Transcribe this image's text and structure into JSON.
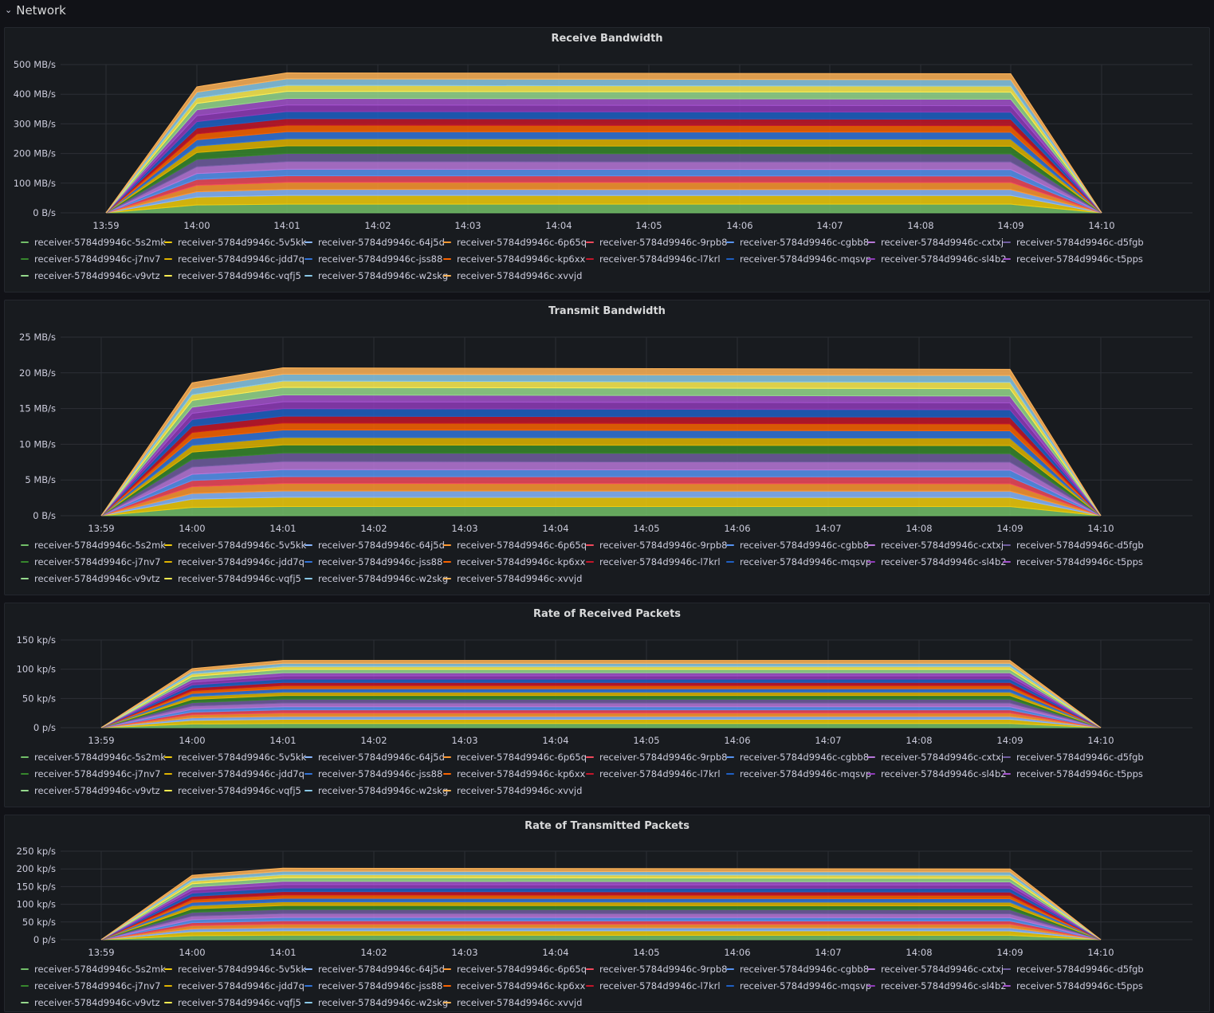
{
  "row": {
    "title": "Network"
  },
  "times": [
    "13:59",
    "14:00",
    "14:01",
    "14:02",
    "14:03",
    "14:04",
    "14:05",
    "14:06",
    "14:07",
    "14:08",
    "14:09",
    "14:10"
  ],
  "series_names": [
    "receiver-5784d9946c-5s2mk",
    "receiver-5784d9946c-5v5kk",
    "receiver-5784d9946c-64j5d",
    "receiver-5784d9946c-6p65q",
    "receiver-5784d9946c-9rpb8",
    "receiver-5784d9946c-cgbb8",
    "receiver-5784d9946c-cxtxj",
    "receiver-5784d9946c-d5fgb",
    "receiver-5784d9946c-j7nv7",
    "receiver-5784d9946c-jdd7q",
    "receiver-5784d9946c-jss88",
    "receiver-5784d9946c-kp6xx",
    "receiver-5784d9946c-l7krl",
    "receiver-5784d9946c-mqsvp",
    "receiver-5784d9946c-sl4b2",
    "receiver-5784d9946c-t5pps",
    "receiver-5784d9946c-v9vtz",
    "receiver-5784d9946c-vqfj5",
    "receiver-5784d9946c-w2skg",
    "receiver-5784d9946c-xvvjd"
  ],
  "series_colors": [
    "#73bf69",
    "#f2cc0c",
    "#8ab8ff",
    "#ff9830",
    "#f2495c",
    "#5794f2",
    "#b877d9",
    "#705da0",
    "#37872d",
    "#e0b400",
    "#3274d9",
    "#fa6400",
    "#c4162a",
    "#1f60c4",
    "#8f3bb8",
    "#a352cc",
    "#96d98d",
    "#ffee52",
    "#8ac9e8",
    "#ffb357"
  ],
  "chart_data": [
    {
      "type": "area",
      "title": "Receive Bandwidth",
      "stacked": true,
      "x": [
        "13:59",
        "14:00",
        "14:01",
        "14:09",
        "14:10"
      ],
      "total": [
        0,
        425,
        472,
        469,
        0
      ],
      "unit": "MB/s",
      "ylim": [
        0,
        500
      ],
      "yticks": [
        "0 B/s",
        "100 MB/s",
        "200 MB/s",
        "300 MB/s",
        "400 MB/s",
        "500 MB/s"
      ],
      "legend": "bottom",
      "grid": true
    },
    {
      "type": "area",
      "title": "Transmit Bandwidth",
      "stacked": true,
      "x": [
        "13:59",
        "14:00",
        "14:01",
        "14:09",
        "14:10"
      ],
      "total": [
        0,
        18.6,
        20.7,
        20.5,
        0
      ],
      "unit": "MB/s",
      "ylim": [
        0,
        25
      ],
      "yticks": [
        "0 B/s",
        "5 MB/s",
        "10 MB/s",
        "15 MB/s",
        "20 MB/s",
        "25 MB/s"
      ],
      "legend": "bottom",
      "grid": true
    },
    {
      "type": "area",
      "title": "Rate of Received Packets",
      "stacked": true,
      "x": [
        "13:59",
        "14:00",
        "14:01",
        "14:09",
        "14:10"
      ],
      "total": [
        0,
        101,
        115,
        115,
        0
      ],
      "unit": "kp/s",
      "ylim": [
        0,
        150
      ],
      "yticks": [
        "0 p/s",
        "50 kp/s",
        "100 kp/s",
        "150 kp/s"
      ],
      "legend": "bottom",
      "grid": true
    },
    {
      "type": "area",
      "title": "Rate of Transmitted Packets",
      "stacked": true,
      "x": [
        "13:59",
        "14:00",
        "14:01",
        "14:09",
        "14:10"
      ],
      "total": [
        0,
        182,
        202,
        200,
        0
      ],
      "unit": "kp/s",
      "ylim": [
        0,
        250
      ],
      "yticks": [
        "0 p/s",
        "50 kp/s",
        "100 kp/s",
        "150 kp/s",
        "200 kp/s",
        "250 kp/s"
      ],
      "legend": "bottom",
      "grid": true
    }
  ]
}
